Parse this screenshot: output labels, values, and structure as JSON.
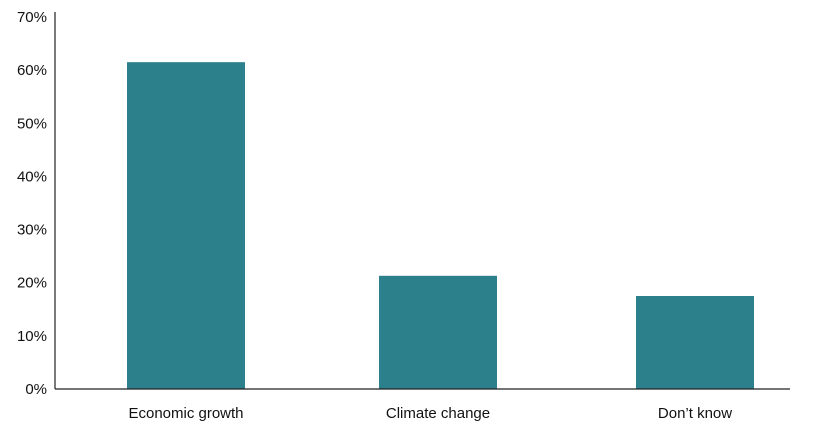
{
  "chart_data": {
    "type": "bar",
    "categories": [
      "Economic growth",
      "Climate change",
      "Don’t know"
    ],
    "values": [
      61.5,
      21.3,
      17.5
    ],
    "title": "",
    "xlabel": "",
    "ylabel": "",
    "ylim": [
      0,
      70
    ],
    "yticks": [
      0,
      10,
      20,
      30,
      40,
      50,
      60,
      70
    ],
    "ytick_labels": [
      "0%",
      "10%",
      "20%",
      "30%",
      "40%",
      "50%",
      "60%",
      "70%"
    ],
    "grid": false,
    "legend": "none",
    "bar_color": "#2c808c"
  }
}
